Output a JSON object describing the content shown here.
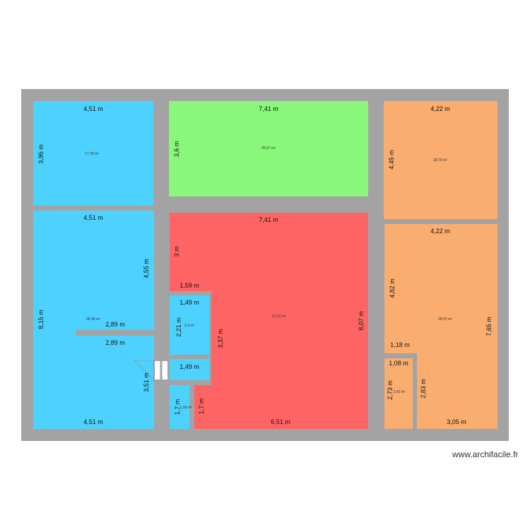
{
  "watermark": "www.archifacile.fr",
  "colors": {
    "wall": "#a3a3a3",
    "blue": "#4dd2ff",
    "green": "#88f77a",
    "orange": "#f9ad6f",
    "red": "#ff6464",
    "background": "#ffffff"
  },
  "rooms": {
    "top_left": {
      "width": "4,51 m",
      "height": "3,95 m",
      "area": "17,78 m²"
    },
    "top_middle": {
      "width": "7,41 m",
      "height": "3,6 m",
      "area": "26,67 m²"
    },
    "top_right": {
      "width": "4,22 m",
      "height": "4,45 m",
      "area": "18,79 m²"
    },
    "left_large": {
      "width_top": "4,51 m",
      "height_left": "8,15 m",
      "height_right": "4,55 m",
      "area": "36,46 m²",
      "width_bottom": "4,51 m",
      "height_lower": "3,51 m"
    },
    "corridor": {
      "width_top": "2,89 m",
      "width_bottom": "2,89 m"
    },
    "center_red": {
      "width_top": "7,41 m",
      "height_top": "3 m",
      "height_right": "8,07 m",
      "notch_height": "3,37 m",
      "notch_width": "1,59 m",
      "area": "52,91 m²",
      "width_bottom": "6,51 m",
      "height_bottom_left": "1,7 m"
    },
    "small_blue_1": {
      "width": "1,49 m",
      "height": "2,21 m",
      "area": "3,3 m²"
    },
    "small_blue_2": {
      "width": "1,49 m"
    },
    "small_blue_3": {
      "height": "1,7 m",
      "area": "1,28 m²"
    },
    "right_large": {
      "width_top": "4,22 m",
      "height_left": "4,82 m",
      "height_right": "7,65 m",
      "area": "28,97 m²",
      "width_bottom": "3,05 m",
      "notch_width": "1,18 m",
      "height_notch": "2,83 m"
    },
    "right_small": {
      "width": "1,08 m",
      "height": "2,73 m",
      "area": "2,93 m²"
    }
  }
}
